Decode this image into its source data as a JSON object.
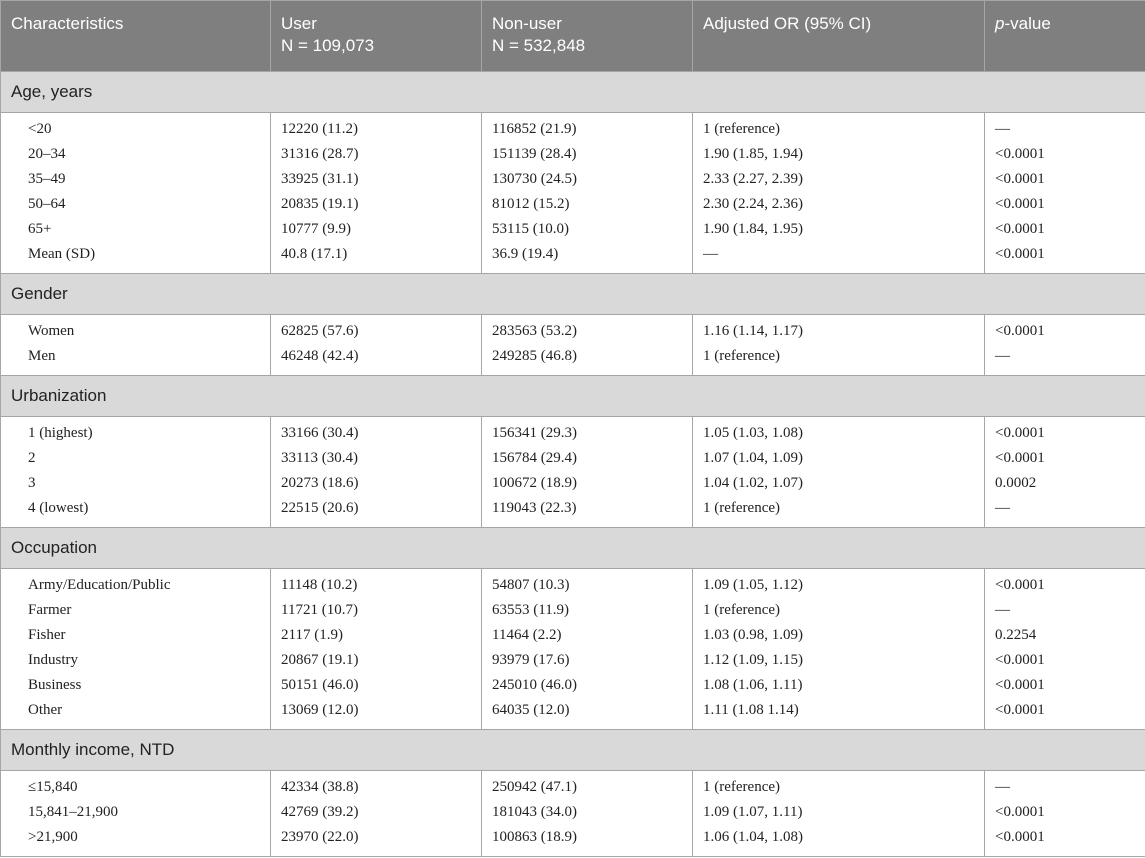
{
  "header": {
    "characteristics": "Characteristics",
    "user": "User",
    "user_n": "N = 109,073",
    "nonuser": "Non-user",
    "nonuser_n": "N = 532,848",
    "or": "Adjusted OR (95% CI)",
    "p_italic": "p",
    "p_rest": "-value"
  },
  "sections": [
    {
      "title": "Age, years",
      "rows": [
        [
          "<20",
          "12220 (11.2)",
          "116852 (21.9)",
          "1 (reference)",
          "—"
        ],
        [
          "20–34",
          "31316 (28.7)",
          "151139 (28.4)",
          "1.90 (1.85, 1.94)",
          "<0.0001"
        ],
        [
          "35–49",
          "33925 (31.1)",
          "130730 (24.5)",
          "2.33 (2.27, 2.39)",
          "<0.0001"
        ],
        [
          "50–64",
          "20835 (19.1)",
          "81012 (15.2)",
          "2.30 (2.24, 2.36)",
          "<0.0001"
        ],
        [
          "65+",
          "10777 (9.9)",
          "53115 (10.0)",
          "1.90 (1.84, 1.95)",
          "<0.0001"
        ],
        [
          "Mean (SD)",
          "40.8 (17.1)",
          "36.9 (19.4)",
          "—",
          "<0.0001"
        ]
      ]
    },
    {
      "title": "Gender",
      "rows": [
        [
          "Women",
          "62825 (57.6)",
          "283563 (53.2)",
          "1.16 (1.14, 1.17)",
          "<0.0001"
        ],
        [
          "Men",
          "46248 (42.4)",
          "249285 (46.8)",
          "1 (reference)",
          "—"
        ]
      ]
    },
    {
      "title": "Urbanization",
      "rows": [
        [
          "1 (highest)",
          "33166 (30.4)",
          "156341 (29.3)",
          "1.05 (1.03, 1.08)",
          "<0.0001"
        ],
        [
          "2",
          "33113 (30.4)",
          "156784 (29.4)",
          "1.07 (1.04, 1.09)",
          "<0.0001"
        ],
        [
          "3",
          "20273 (18.6)",
          "100672 (18.9)",
          "1.04 (1.02, 1.07)",
          "0.0002"
        ],
        [
          "4 (lowest)",
          "22515 (20.6)",
          "119043 (22.3)",
          "1 (reference)",
          "—"
        ]
      ]
    },
    {
      "title": "Occupation",
      "rows": [
        [
          "Army/Education/Public",
          "11148 (10.2)",
          "54807 (10.3)",
          "1.09 (1.05, 1.12)",
          "<0.0001"
        ],
        [
          "Farmer",
          "11721 (10.7)",
          "63553 (11.9)",
          "1 (reference)",
          "—"
        ],
        [
          "Fisher",
          "2117 (1.9)",
          "11464 (2.2)",
          "1.03 (0.98, 1.09)",
          "0.2254"
        ],
        [
          "Industry",
          "20867 (19.1)",
          "93979 (17.6)",
          "1.12 (1.09, 1.15)",
          "<0.0001"
        ],
        [
          "Business",
          "50151 (46.0)",
          "245010 (46.0)",
          "1.08 (1.06, 1.11)",
          "<0.0001"
        ],
        [
          "Other",
          "13069 (12.0)",
          "64035 (12.0)",
          "1.11 (1.08 1.14)",
          "<0.0001"
        ]
      ]
    },
    {
      "title": "Monthly income, NTD",
      "rows": [
        [
          "≤15,840",
          "42334 (38.8)",
          "250942 (47.1)",
          "1 (reference)",
          "—"
        ],
        [
          "15,841–21,900",
          "42769 (39.2)",
          "181043 (34.0)",
          "1.09 (1.07, 1.11)",
          "<0.0001"
        ],
        [
          ">21,900",
          "23970 (22.0)",
          "100863 (18.9)",
          "1.06 (1.04, 1.08)",
          "<0.0001"
        ]
      ]
    }
  ]
}
